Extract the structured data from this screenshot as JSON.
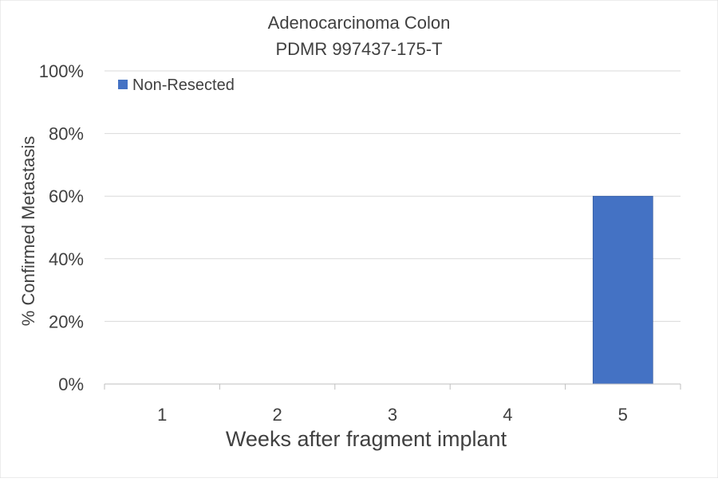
{
  "chart_data": {
    "type": "bar",
    "title": "Adenocarcinoma Colon",
    "subtitle": "PDMR 997437-175-T",
    "xlabel": "Weeks after fragment implant",
    "ylabel": "% Confirmed Metastasis",
    "categories": [
      "1",
      "2",
      "3",
      "4",
      "5"
    ],
    "series": [
      {
        "name": "Non-Resected",
        "values": [
          0,
          0,
          0,
          0,
          60
        ],
        "color": "#4472C4"
      }
    ],
    "ylim": [
      0,
      100
    ],
    "yticks": [
      "0%",
      "20%",
      "40%",
      "60%",
      "80%",
      "100%"
    ],
    "ytick_values": [
      0,
      20,
      40,
      60,
      80,
      100
    ],
    "grid": true,
    "legend_position": "top-left"
  }
}
